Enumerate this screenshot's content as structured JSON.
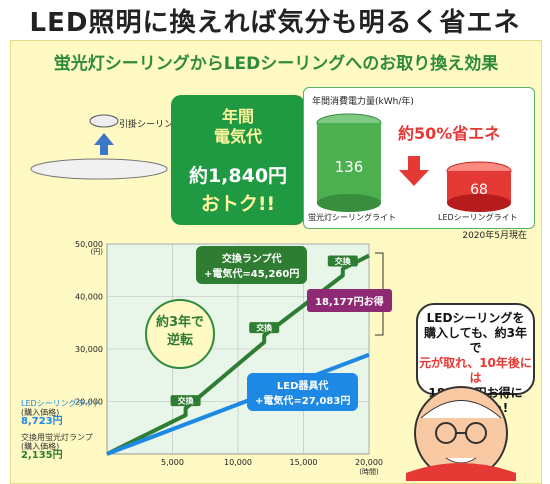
{
  "header": {
    "title": "LED照明に換えれば気分も明るく省エネ"
  },
  "subtitle": "蛍光灯シーリングからLEDシーリングへのお取り換え効果",
  "fixture": {
    "label": "引掛シーリング"
  },
  "green_box": {
    "line1": "年間",
    "line2": "電気代",
    "line3": "約1,840円",
    "line4": "おトク!!"
  },
  "consumption": {
    "title": "年間消費電力量(kWh/年)",
    "fluor_value": "136",
    "led_value": "68",
    "fluor_label": "蛍光灯シーリングライト",
    "led_label": "LEDシーリングライト",
    "saving_label": "約50%省エネ"
  },
  "date": "2020年5月現在",
  "chart_data": {
    "type": "line",
    "ylabel": "(円)",
    "xlabel": "(時間)",
    "xlim": [
      0,
      20000
    ],
    "ylim": [
      10000,
      50000
    ],
    "x_ticks": [
      "5,000",
      "10,000",
      "15,000",
      "20,000"
    ],
    "x_tick_values": [
      5000,
      10000,
      15000,
      20000
    ],
    "y_ticks": [
      "50,000",
      "40,000",
      "30,000",
      "20,000"
    ],
    "y_tick_values": [
      50000,
      40000,
      30000,
      20000
    ],
    "series": [
      {
        "name": "交換ランプ代+電気代=45,260円",
        "color": "#2e7d32",
        "points": [
          [
            0,
            2135
          ],
          [
            5999,
            17400
          ],
          [
            6000,
            18700
          ],
          [
            12000,
            31300
          ],
          [
            12001,
            32600
          ],
          [
            17999,
            44000
          ],
          [
            18000,
            45260
          ],
          [
            20000,
            47800
          ]
        ]
      },
      {
        "name": "LED器具代+電気代=27,083円",
        "color": "#1e88e5",
        "points": [
          [
            0,
            8723
          ],
          [
            20000,
            28900
          ]
        ]
      }
    ],
    "step_labels": [
      "交換",
      "交換",
      "交換"
    ],
    "step_x": [
      5999,
      12000,
      17999
    ],
    "annotations": {
      "lamp_callout_line1": "交換ランプ代",
      "lamp_callout_line2": "+電気代=45,260円",
      "led_callout_line1": "LED器具代",
      "led_callout_line2": "+電気代=27,083円",
      "diff": "18,177円お得",
      "reverse_line1": "約3年で",
      "reverse_line2": "逆転"
    }
  },
  "legend": {
    "led_label": "LEDシーリングライト",
    "led_sub": "(購入価格)",
    "led_value": "8,723円",
    "fl_label": "交換用蛍光灯ランプ",
    "fl_sub": "(購入価格)",
    "fl_value": "2,135円"
  },
  "bubble": {
    "line1": "LEDシーリングを",
    "line2": "購入しても、約3年で",
    "line3": "元が取れ、10年後には",
    "line4": "18,177円お得に",
    "line5": "なるんじゃ!"
  },
  "colors": {
    "green": "#1f9a43",
    "red": "#e53935",
    "blue": "#1e88e5",
    "panel": "#fff9c4",
    "purple": "#8e2a73"
  }
}
